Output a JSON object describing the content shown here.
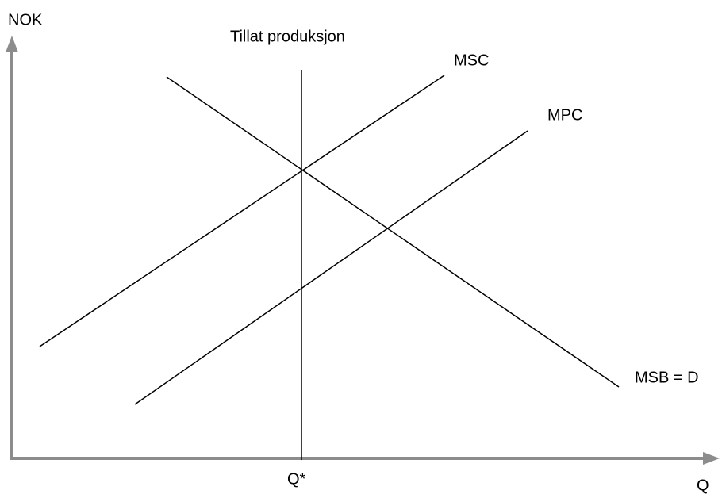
{
  "axis_labels": {
    "y": "NOK",
    "x": "Q"
  },
  "lines": [
    {
      "label": "Tillat produksjon"
    },
    {
      "label": "MSC"
    },
    {
      "label": "MPC"
    },
    {
      "label": "MSB = D"
    }
  ],
  "x_marker": "Q*"
}
